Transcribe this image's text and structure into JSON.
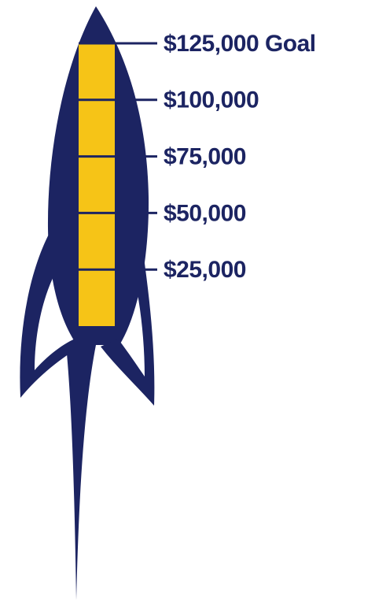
{
  "chart_data": {
    "type": "bar",
    "values": [
      125000
    ],
    "color": "#f6c417",
    "tick_color": "#1c2462",
    "ylim": [
      0,
      125000
    ],
    "yticks": [
      {
        "value": 25000,
        "label": "$25,000"
      },
      {
        "value": 50000,
        "label": "$50,000"
      },
      {
        "value": 75000,
        "label": "$75,000"
      },
      {
        "value": 100000,
        "label": "$100,000"
      },
      {
        "value": 125000,
        "label": "$125,000 Goal"
      }
    ]
  }
}
